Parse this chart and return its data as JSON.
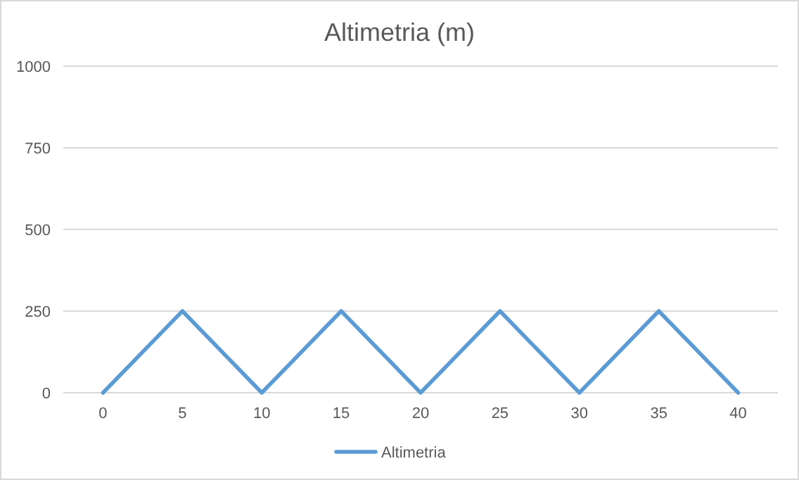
{
  "chart_data": {
    "type": "line",
    "title": "Altimetria (m)",
    "categories": [
      "0",
      "5",
      "10",
      "15",
      "20",
      "25",
      "30",
      "35",
      "40"
    ],
    "series": [
      {
        "name": "Altimetria",
        "color": "#5b9bd5",
        "values": [
          0,
          250,
          0,
          250,
          0,
          250,
          0,
          250,
          0
        ]
      }
    ],
    "ylim": [
      0,
      1000
    ],
    "yticks": [
      0,
      250,
      500,
      750,
      1000
    ],
    "grid": "y",
    "legend": "bottom",
    "marker": "none",
    "line_style": "solid"
  }
}
